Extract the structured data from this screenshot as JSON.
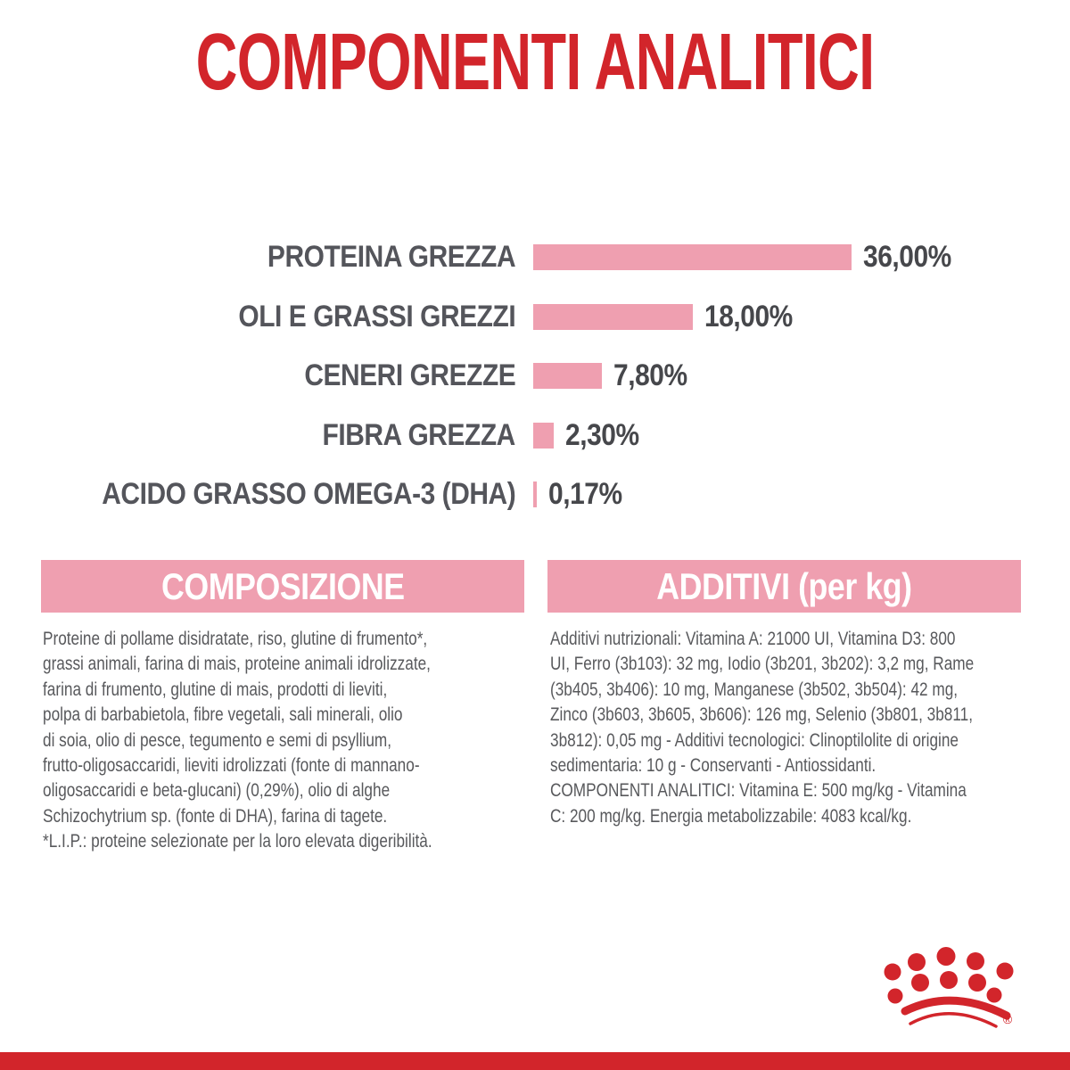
{
  "title": {
    "text": "COMPONENTI ANALITICI"
  },
  "chart_data": {
    "type": "bar",
    "orientation": "horizontal",
    "title": "COMPONENTI ANALITICI",
    "categories": [
      "PROTEINA GREZZA",
      "OLI E GRASSI GREZZI",
      "CENERI GREZZE",
      "FIBRA GREZZA",
      "ACIDO GRASSO OMEGA-3 (DHA)"
    ],
    "values": [
      36.0,
      18.0,
      7.8,
      2.3,
      0.17
    ],
    "value_labels": [
      "36,00%",
      "18,00%",
      "7,80%",
      "2,30%",
      "0,17%"
    ],
    "unit": "%",
    "xlim": [
      0,
      36
    ],
    "grid": false,
    "legend": false,
    "bar_color": "#ef9fb0"
  },
  "sections": {
    "composizione": {
      "header": "COMPOSIZIONE",
      "lines": [
        "Proteine di pollame disidratate, riso, glutine di frumento*,",
        "grassi animali, farina di mais, proteine animali idrolizzate,",
        "farina di frumento, glutine di mais, prodotti di lieviti,",
        "polpa di barbabietola, fibre vegetali, sali minerali, olio",
        "di soia, olio di pesce, tegumento e semi di psyllium,",
        "frutto-oligosaccaridi, lieviti idrolizzati (fonte di mannano-",
        "oligosaccaridi e beta-glucani) (0,29%), olio di alghe",
        "Schizochytrium sp. (fonte di DHA), farina di tagete.",
        "*L.I.P.: proteine selezionate per la loro elevata digeribilità."
      ]
    },
    "additivi": {
      "header": "ADDITIVI (per kg)",
      "lines": [
        "Additivi nutrizionali: Vitamina A: 21000 UI, Vitamina D3: 800",
        "UI, Ferro (3b103): 32 mg, Iodio (3b201, 3b202): 3,2 mg, Rame",
        "(3b405, 3b406): 10 mg, Manganese (3b502, 3b504): 42 mg,",
        "Zinco (3b603, 3b605, 3b606): 126 mg, Selenio (3b801, 3b811,",
        "3b812): 0,05 mg - Additivi tecnologici: Clinoptilolite di origine",
        "sedimentaria: 10 g - Conservanti - Antiossidanti.",
        "COMPONENTI ANALITICI: Vitamina E: 500 mg/kg - Vitamina",
        "C: 200 mg/kg. Energia metabolizzabile: 4083 kcal/kg."
      ]
    }
  },
  "footer": {
    "logo": "royal-canin-crown",
    "registered_mark": "®"
  },
  "colors": {
    "red": "#d2252b",
    "pink": "#ef9fb0",
    "label_gray": "#54555b",
    "value_gray": "#46474b",
    "body_gray": "#58595c"
  }
}
